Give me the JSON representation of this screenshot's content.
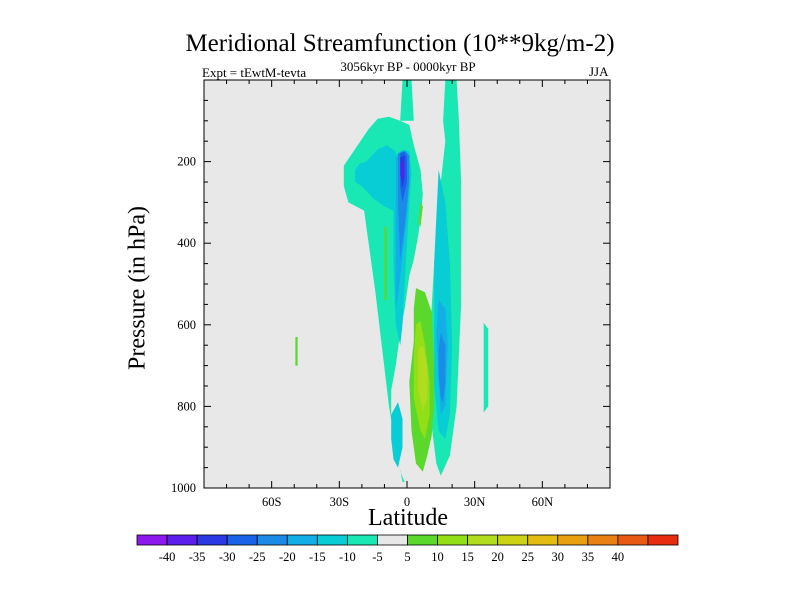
{
  "chart_data": {
    "type": "heatmap",
    "title": "Meridional Streamfunction (10**9kg/m-2)",
    "left_label": "Expt = tEwtM-tevta",
    "center_label": "3056kyr BP - 0000kyr BP",
    "right_label": "JJA",
    "xlabel": "Latitude",
    "ylabel": "Pressure (in hPa)",
    "xlim": [
      -90,
      90
    ],
    "ylim": [
      1000,
      0
    ],
    "x_ticks": [
      "60S",
      "30S",
      "0",
      "30N",
      "60N"
    ],
    "x_tick_values": [
      -60,
      -30,
      0,
      30,
      60
    ],
    "y_ticks": [
      "200",
      "400",
      "600",
      "800",
      "1000"
    ],
    "y_tick_values": [
      200,
      400,
      600,
      800,
      1000
    ],
    "colorbar_levels": [
      "-40",
      "-35",
      "-30",
      "-25",
      "-20",
      "-15",
      "-10",
      "-5",
      "5",
      "10",
      "15",
      "20",
      "25",
      "30",
      "35",
      "40"
    ],
    "colorbar_colors": [
      "#8c18ee",
      "#5c1eed",
      "#2b39e4",
      "#1a63e8",
      "#1c8be8",
      "#14aee6",
      "#08cdd4",
      "#19e8b4",
      "#e8e8e8",
      "#5ad82c",
      "#92df18",
      "#b2dd1e",
      "#ccd214",
      "#e3bb11",
      "#e8a010",
      "#e88014",
      "#e85a14",
      "#e82c10"
    ],
    "features": [
      {
        "type": "region",
        "level": "-5",
        "lat": [
          -28,
          -17,
          -13,
          -8,
          -3,
          1,
          3,
          6,
          7,
          6,
          5,
          3,
          1,
          -1,
          -3,
          -5,
          -7,
          -7,
          -5,
          -3,
          -1,
          -2,
          -4,
          -8,
          -14,
          -19,
          -26,
          -28
        ],
        "p": [
          210,
          120,
          95,
          90,
          100,
          110,
          160,
          220,
          280,
          340,
          380,
          440,
          480,
          560,
          620,
          700,
          760,
          820,
          880,
          960,
          985,
          985,
          930,
          800,
          520,
          320,
          300,
          260
        ]
      },
      {
        "type": "region",
        "level": "-5",
        "lat": [
          -3,
          -2,
          2,
          3
        ],
        "p": [
          100,
          0,
          0,
          100
        ]
      },
      {
        "type": "region",
        "level": "-5",
        "lat": [
          16,
          17,
          22,
          23,
          24,
          24,
          22,
          19,
          15,
          13,
          11,
          10,
          12,
          15,
          17
        ],
        "p": [
          100,
          0,
          0,
          100,
          250,
          550,
          800,
          920,
          970,
          940,
          850,
          650,
          450,
          250,
          150
        ]
      },
      {
        "type": "region",
        "level": "-5",
        "lat": [
          34,
          36,
          36,
          34
        ],
        "p": [
          595,
          610,
          800,
          815
        ]
      },
      {
        "type": "region",
        "level": "-10",
        "lat": [
          -18,
          -13,
          -9,
          -5,
          -4,
          -6,
          -10,
          -15,
          -20,
          -23,
          -23,
          -21
        ],
        "p": [
          200,
          170,
          160,
          175,
          260,
          320,
          310,
          290,
          260,
          250,
          220,
          205
        ]
      },
      {
        "type": "region",
        "level": "-10",
        "lat": [
          -6,
          -2,
          1,
          2,
          1,
          0,
          -1,
          -2,
          -3,
          -5,
          -6,
          -6
        ],
        "p": [
          190,
          170,
          175,
          230,
          300,
          400,
          500,
          600,
          650,
          600,
          450,
          300
        ]
      },
      {
        "type": "region",
        "level": "-10",
        "lat": [
          -7,
          -4,
          -2,
          -2,
          -4,
          -6,
          -7
        ],
        "p": [
          820,
          790,
          830,
          900,
          950,
          930,
          880
        ]
      },
      {
        "type": "region",
        "level": "-10",
        "lat": [
          14,
          17,
          19,
          20,
          19,
          17,
          14,
          12,
          12
        ],
        "p": [
          220,
          300,
          450,
          650,
          820,
          880,
          860,
          750,
          450
        ]
      },
      {
        "type": "region",
        "level": "-15",
        "lat": [
          -5,
          -2,
          0,
          1,
          0,
          -2,
          -4,
          -5,
          -5
        ],
        "p": [
          190,
          175,
          180,
          240,
          330,
          430,
          530,
          560,
          380
        ]
      },
      {
        "type": "region",
        "level": "-15",
        "lat": [
          14,
          17,
          18,
          17,
          15,
          14,
          13
        ],
        "p": [
          540,
          560,
          650,
          800,
          820,
          740,
          620
        ]
      },
      {
        "type": "region",
        "level": "-20",
        "lat": [
          -4,
          -1,
          1,
          1,
          -1,
          -3,
          -4
        ],
        "p": [
          180,
          173,
          185,
          250,
          360,
          440,
          300
        ]
      },
      {
        "type": "region",
        "level": "-20",
        "lat": [
          15,
          17,
          17,
          16,
          15,
          14,
          14
        ],
        "p": [
          620,
          650,
          740,
          790,
          780,
          720,
          660
        ]
      },
      {
        "type": "region",
        "level": "-25",
        "lat": [
          -3,
          -1,
          0,
          0,
          -2,
          -3,
          -3
        ],
        "p": [
          180,
          176,
          190,
          250,
          300,
          260,
          210
        ]
      },
      {
        "type": "region",
        "level": "-30",
        "lat": [
          -3,
          -1,
          -1,
          -2,
          -3
        ],
        "p": [
          190,
          185,
          240,
          265,
          230
        ]
      },
      {
        "type": "region",
        "level": "-35",
        "lat": [
          -2.5,
          -1.3,
          -1.4,
          -2.3
        ],
        "p": [
          200,
          205,
          240,
          240
        ]
      },
      {
        "type": "region",
        "level": "5",
        "lat": [
          4,
          8,
          11,
          12,
          12,
          11,
          9,
          7,
          4,
          2,
          1,
          3,
          3
        ],
        "p": [
          510,
          520,
          570,
          700,
          800,
          870,
          920,
          960,
          940,
          860,
          740,
          640,
          560
        ]
      },
      {
        "type": "region",
        "level": "5",
        "lat": [
          -10,
          -9,
          -9,
          -10
        ],
        "p": [
          360,
          360,
          540,
          540
        ]
      },
      {
        "type": "region",
        "level": "5",
        "lat": [
          -49.5,
          -48.5,
          -48.5,
          -49.5
        ],
        "p": [
          630,
          630,
          700,
          700
        ]
      },
      {
        "type": "region",
        "level": "5",
        "lat": [
          6,
          7,
          6,
          5
        ],
        "p": [
          300,
          310,
          360,
          350
        ]
      },
      {
        "type": "region",
        "level": "10",
        "lat": [
          4,
          6,
          8,
          10,
          10,
          8,
          6,
          3,
          3
        ],
        "p": [
          600,
          590,
          650,
          740,
          820,
          880,
          860,
          780,
          680
        ]
      },
      {
        "type": "region",
        "level": "15",
        "lat": [
          5,
          7,
          9,
          9,
          7,
          5,
          5
        ],
        "p": [
          660,
          650,
          700,
          780,
          810,
          760,
          700
        ]
      }
    ]
  }
}
